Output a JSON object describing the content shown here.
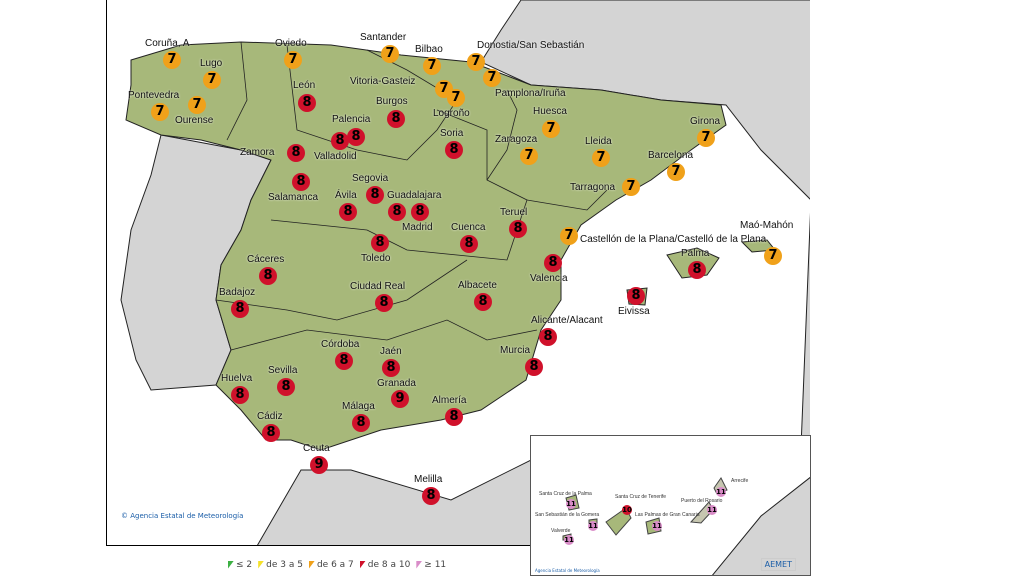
{
  "copyright": "Agencia Estatal de Meteorología",
  "logo": "AEMET",
  "colors": {
    "le2": "#3cb043",
    "3to5": "#f5e12a",
    "6to7": "#f0a11a",
    "8to10": "#d0112b",
    "ge11": "#d98cc8",
    "land": "#a7b87a",
    "neighbor": "#d4d4d4"
  },
  "legend": [
    "≤ 2",
    "de 3 a 5",
    "de 6 a 7",
    "de 8 a 10",
    "≥ 11"
  ],
  "cities": [
    {
      "name": "Coruña, A",
      "value": "7"
    },
    {
      "name": "Lugo",
      "value": "7"
    },
    {
      "name": "Oviedo",
      "value": "7"
    },
    {
      "name": "Santander",
      "value": "7"
    },
    {
      "name": "Bilbao",
      "value": "7"
    },
    {
      "name": "Donostia/San Sebastián",
      "value": "7"
    },
    {
      "name": "Vitoria-Gasteiz",
      "value": "7"
    },
    {
      "name": "Pamplona/Iruña",
      "value": "7"
    },
    {
      "name": "Logroño",
      "value": "7"
    },
    {
      "name": "Pontevedra",
      "value": "7"
    },
    {
      "name": "Ourense",
      "value": "7"
    },
    {
      "name": "León",
      "value": "8"
    },
    {
      "name": "Burgos",
      "value": "8"
    },
    {
      "name": "Palencia",
      "value": "8"
    },
    {
      "name": "Valladolid",
      "value": "8"
    },
    {
      "name": "Huesca",
      "value": "7"
    },
    {
      "name": "Girona",
      "value": "7"
    },
    {
      "name": "Soria",
      "value": "8"
    },
    {
      "name": "Zaragoza",
      "value": "7"
    },
    {
      "name": "Lleida",
      "value": "7"
    },
    {
      "name": "Zamora",
      "value": "8"
    },
    {
      "name": "Barcelona",
      "value": "7"
    },
    {
      "name": "Tarragona",
      "value": "7"
    },
    {
      "name": "Salamanca",
      "value": "8"
    },
    {
      "name": "Segovia",
      "value": "8"
    },
    {
      "name": "Ávila",
      "value": "8"
    },
    {
      "name": "Guadalajara",
      "value": "8"
    },
    {
      "name": "Madrid",
      "value": "8"
    },
    {
      "name": "Teruel",
      "value": "8"
    },
    {
      "name": "Cuenca",
      "value": "8"
    },
    {
      "name": "Castellón de la Plana/Castelló de la Plana",
      "value": "7"
    },
    {
      "name": "Toledo",
      "value": "8"
    },
    {
      "name": "Maó-Mahón",
      "value": "7"
    },
    {
      "name": "Palma",
      "value": "8"
    },
    {
      "name": "Valencia",
      "value": "8"
    },
    {
      "name": "Cáceres",
      "value": "8"
    },
    {
      "name": "Badajoz",
      "value": "8"
    },
    {
      "name": "Ciudad Real",
      "value": "8"
    },
    {
      "name": "Albacete",
      "value": "8"
    },
    {
      "name": "Eivissa",
      "value": "8"
    },
    {
      "name": "Alicante/Alacant",
      "value": "8"
    },
    {
      "name": "Córdoba",
      "value": "8"
    },
    {
      "name": "Jaén",
      "value": "8"
    },
    {
      "name": "Murcia",
      "value": "8"
    },
    {
      "name": "Sevilla",
      "value": "8"
    },
    {
      "name": "Huelva",
      "value": "8"
    },
    {
      "name": "Granada",
      "value": "9"
    },
    {
      "name": "Almería",
      "value": "8"
    },
    {
      "name": "Málaga",
      "value": "8"
    },
    {
      "name": "Cádiz",
      "value": "8"
    },
    {
      "name": "Ceuta",
      "value": "9"
    },
    {
      "name": "Melilla",
      "value": "8"
    }
  ],
  "canarias": [
    {
      "name": "Santa Cruz de la Palma",
      "value": "11"
    },
    {
      "name": "Santa Cruz de Tenerife",
      "value": "10"
    },
    {
      "name": "San Sebastián de la Gomera",
      "value": "11"
    },
    {
      "name": "Valverde",
      "value": "11"
    },
    {
      "name": "Las Palmas de Gran Canaria",
      "value": "11"
    },
    {
      "name": "Puerto del Rosario",
      "value": "11"
    },
    {
      "name": "Arrecife",
      "value": "11"
    }
  ]
}
